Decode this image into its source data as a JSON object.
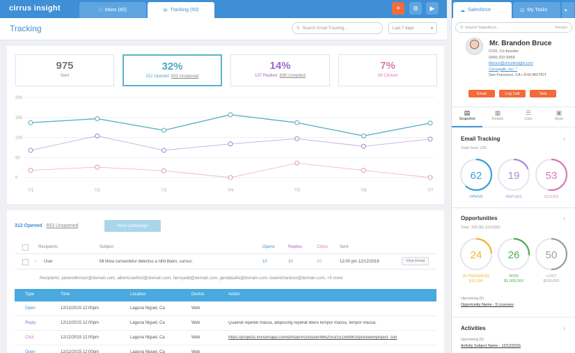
{
  "app": {
    "logo": "cirrus insight"
  },
  "tabs": {
    "inbox": "Inbox (60)",
    "tracking": "Tracking (50)"
  },
  "header": {
    "title": "Tracking",
    "search_placeholder": "Search Email Tracking...",
    "range": "Last 7 days"
  },
  "stats": {
    "sent": {
      "value": "975",
      "label": "Sent"
    },
    "opened": {
      "value": "32%",
      "a": "312 Opened",
      "b": "653 Unopened"
    },
    "replied": {
      "value": "14%",
      "a": "137 Replied",
      "b": "838 Unreplied"
    },
    "clicked": {
      "value": "7%",
      "a": "68 Clicked"
    }
  },
  "chart_data": {
    "type": "line",
    "x": [
      "7/1",
      "7/2",
      "7/3",
      "7/4",
      "7/5",
      "7/6",
      "7/7"
    ],
    "y_ticks": [
      "200",
      "150",
      "100",
      "50",
      "0"
    ],
    "ylim": [
      0,
      200
    ],
    "series": [
      {
        "values": [
          137,
          147,
          118,
          157,
          137,
          104,
          136
        ],
        "color": "#5bb2c6"
      },
      {
        "values": [
          68,
          104,
          68,
          84,
          97,
          78,
          96
        ],
        "color": "#a98ad6"
      },
      {
        "values": [
          18,
          26,
          17,
          0,
          36,
          18,
          0
        ],
        "color": "#e39ac7"
      }
    ]
  },
  "lower": {
    "opened": "312 Opened",
    "unopened": "653 Unopened",
    "new_campaign": "New Campaign",
    "columns": {
      "recipients": "Recipients",
      "subject": "Subject",
      "opens": "Opens",
      "replies": "Replies",
      "clicks": "Clicks",
      "sent": "Sent"
    },
    "row": {
      "user": "User",
      "subject": "Mi litora consectetur delectus a nihil libero, cursus.",
      "opens": "10",
      "replies": "10",
      "clicks": "10",
      "sent": "12:00 pm 12/12/2016",
      "action": "View Email"
    },
    "recipients_line": "Recipients: peterwilkinson@domain.com, albertcrawford@domain.com, henryedd@domain.com, geraldpalle@domain.com, louierichardson@domain.com, +5 more",
    "detail_columns": {
      "type": "Type",
      "time": "Time",
      "location": "Location",
      "device": "Device",
      "action": "Action"
    },
    "detail_rows": [
      {
        "type": "Open",
        "time": "12/12/2015 12:00pm",
        "location": "Laguna Niguel, Ca",
        "device": "Web",
        "action": ""
      },
      {
        "type": "Reply",
        "time": "12/12/2015 12:00pm",
        "location": "Laguna Niguel, Ca",
        "device": "Web",
        "action": "Quaerat repellat massa, adipiscing repellat libero tempor massa, tempor massa."
      },
      {
        "type": "Click",
        "time": "12/12/2015 12:00pm",
        "location": "Laguna Niguel, Ca",
        "device": "Web",
        "action": "https://projects.invisionapp.com/d/main#/console/4862053/151589903/preview#project_con"
      },
      {
        "type": "Open",
        "time": "12/12/2015 12:00pm",
        "location": "Laguna Niguel, Ca",
        "device": "Web",
        "action": ""
      }
    ]
  },
  "sidebar": {
    "tab_salesforce": "Salesforce",
    "tab_mytasks": "My Tasks",
    "search_placeholder": "Search Salesforce...",
    "search_scope": "Person",
    "contact": {
      "name": "Mr. Brandon Bruce",
      "title": "COO, Co-founder",
      "phone": "(949) 232-5959",
      "email": "bbruce@cirrusinsight.com",
      "company": "Cirruspath, Inc. *",
      "location": "San Francisco, CA  •  8:00 AM PDT"
    },
    "actions": {
      "email": "Email",
      "log_call": "Log Call",
      "task": "Task"
    },
    "nav": {
      "snapshot": "Snapshot",
      "details": "Details",
      "lists": "Lists",
      "apps": "Apps"
    },
    "email_tracking": {
      "title": "Email Tracking",
      "total": "Total Sent: 100",
      "rings": [
        {
          "value": "62",
          "label": "OPENS",
          "color": "#3f9fd6",
          "fill": 0.62
        },
        {
          "value": "19",
          "label": "REPLIES",
          "color": "#a98ad6",
          "fill": 0.19
        },
        {
          "value": "53",
          "label": "CLICKS",
          "color": "#d97ab3",
          "fill": 0.53
        }
      ]
    },
    "opportunities": {
      "title": "Opportunities",
      "total": "Total: 100 ($1,110,000)",
      "rings": [
        {
          "value": "24",
          "label": "IN PROGRESS",
          "amount": "$10,000",
          "color": "#f0b429",
          "fill": 0.24
        },
        {
          "value": "26",
          "label": "WON",
          "amount": "$1,000,000",
          "color": "#4caf50",
          "fill": 0.26
        },
        {
          "value": "50",
          "label": "LOST",
          "amount": "$100,000",
          "color": "#9aa0a6",
          "fill": 0.5
        }
      ],
      "upcoming": "Upcoming (6)",
      "upcoming_item": "Opportunity Name - 5 Licenses"
    },
    "activities": {
      "title": "Activities",
      "upcoming": "Upcoming (6)",
      "upcoming_item": "Activity Subject Name - 12/12/2016"
    }
  }
}
